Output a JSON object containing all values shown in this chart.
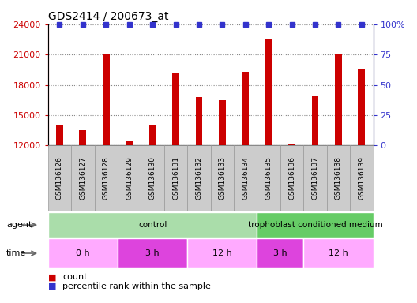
{
  "title": "GDS2414 / 200673_at",
  "samples": [
    "GSM136126",
    "GSM136127",
    "GSM136128",
    "GSM136129",
    "GSM136130",
    "GSM136131",
    "GSM136132",
    "GSM136133",
    "GSM136134",
    "GSM136135",
    "GSM136136",
    "GSM136137",
    "GSM136138",
    "GSM136139"
  ],
  "counts": [
    14000,
    13500,
    21000,
    12400,
    14000,
    19200,
    16800,
    16500,
    19300,
    22500,
    12200,
    16900,
    21000,
    19500
  ],
  "bar_color": "#cc0000",
  "dot_color": "#3333cc",
  "ylim_left": [
    12000,
    24000
  ],
  "ylim_right": [
    0,
    100
  ],
  "yticks_left": [
    12000,
    15000,
    18000,
    21000,
    24000
  ],
  "yticks_right": [
    0,
    25,
    50,
    75,
    100
  ],
  "ytick_labels_right": [
    "0",
    "25",
    "50",
    "75",
    "100%"
  ],
  "grid_color": "#888888",
  "agent_groups": [
    {
      "label": "control",
      "start": 0,
      "end": 9,
      "color": "#aaddaa"
    },
    {
      "label": "trophoblast conditioned medium",
      "start": 9,
      "end": 14,
      "color": "#66cc66"
    }
  ],
  "time_groups": [
    {
      "label": "0 h",
      "start": 0,
      "end": 3,
      "color": "#ffaaff"
    },
    {
      "label": "3 h",
      "start": 3,
      "end": 6,
      "color": "#dd44dd"
    },
    {
      "label": "12 h",
      "start": 6,
      "end": 9,
      "color": "#ffaaff"
    },
    {
      "label": "3 h",
      "start": 9,
      "end": 11,
      "color": "#dd44dd"
    },
    {
      "label": "12 h",
      "start": 11,
      "end": 14,
      "color": "#ffaaff"
    }
  ],
  "agent_label": "agent",
  "time_label": "time",
  "legend_count_label": "count",
  "legend_pct_label": "percentile rank within the sample",
  "bar_width": 0.3,
  "tick_label_bg": "#cccccc",
  "tick_label_edgecolor": "#999999"
}
